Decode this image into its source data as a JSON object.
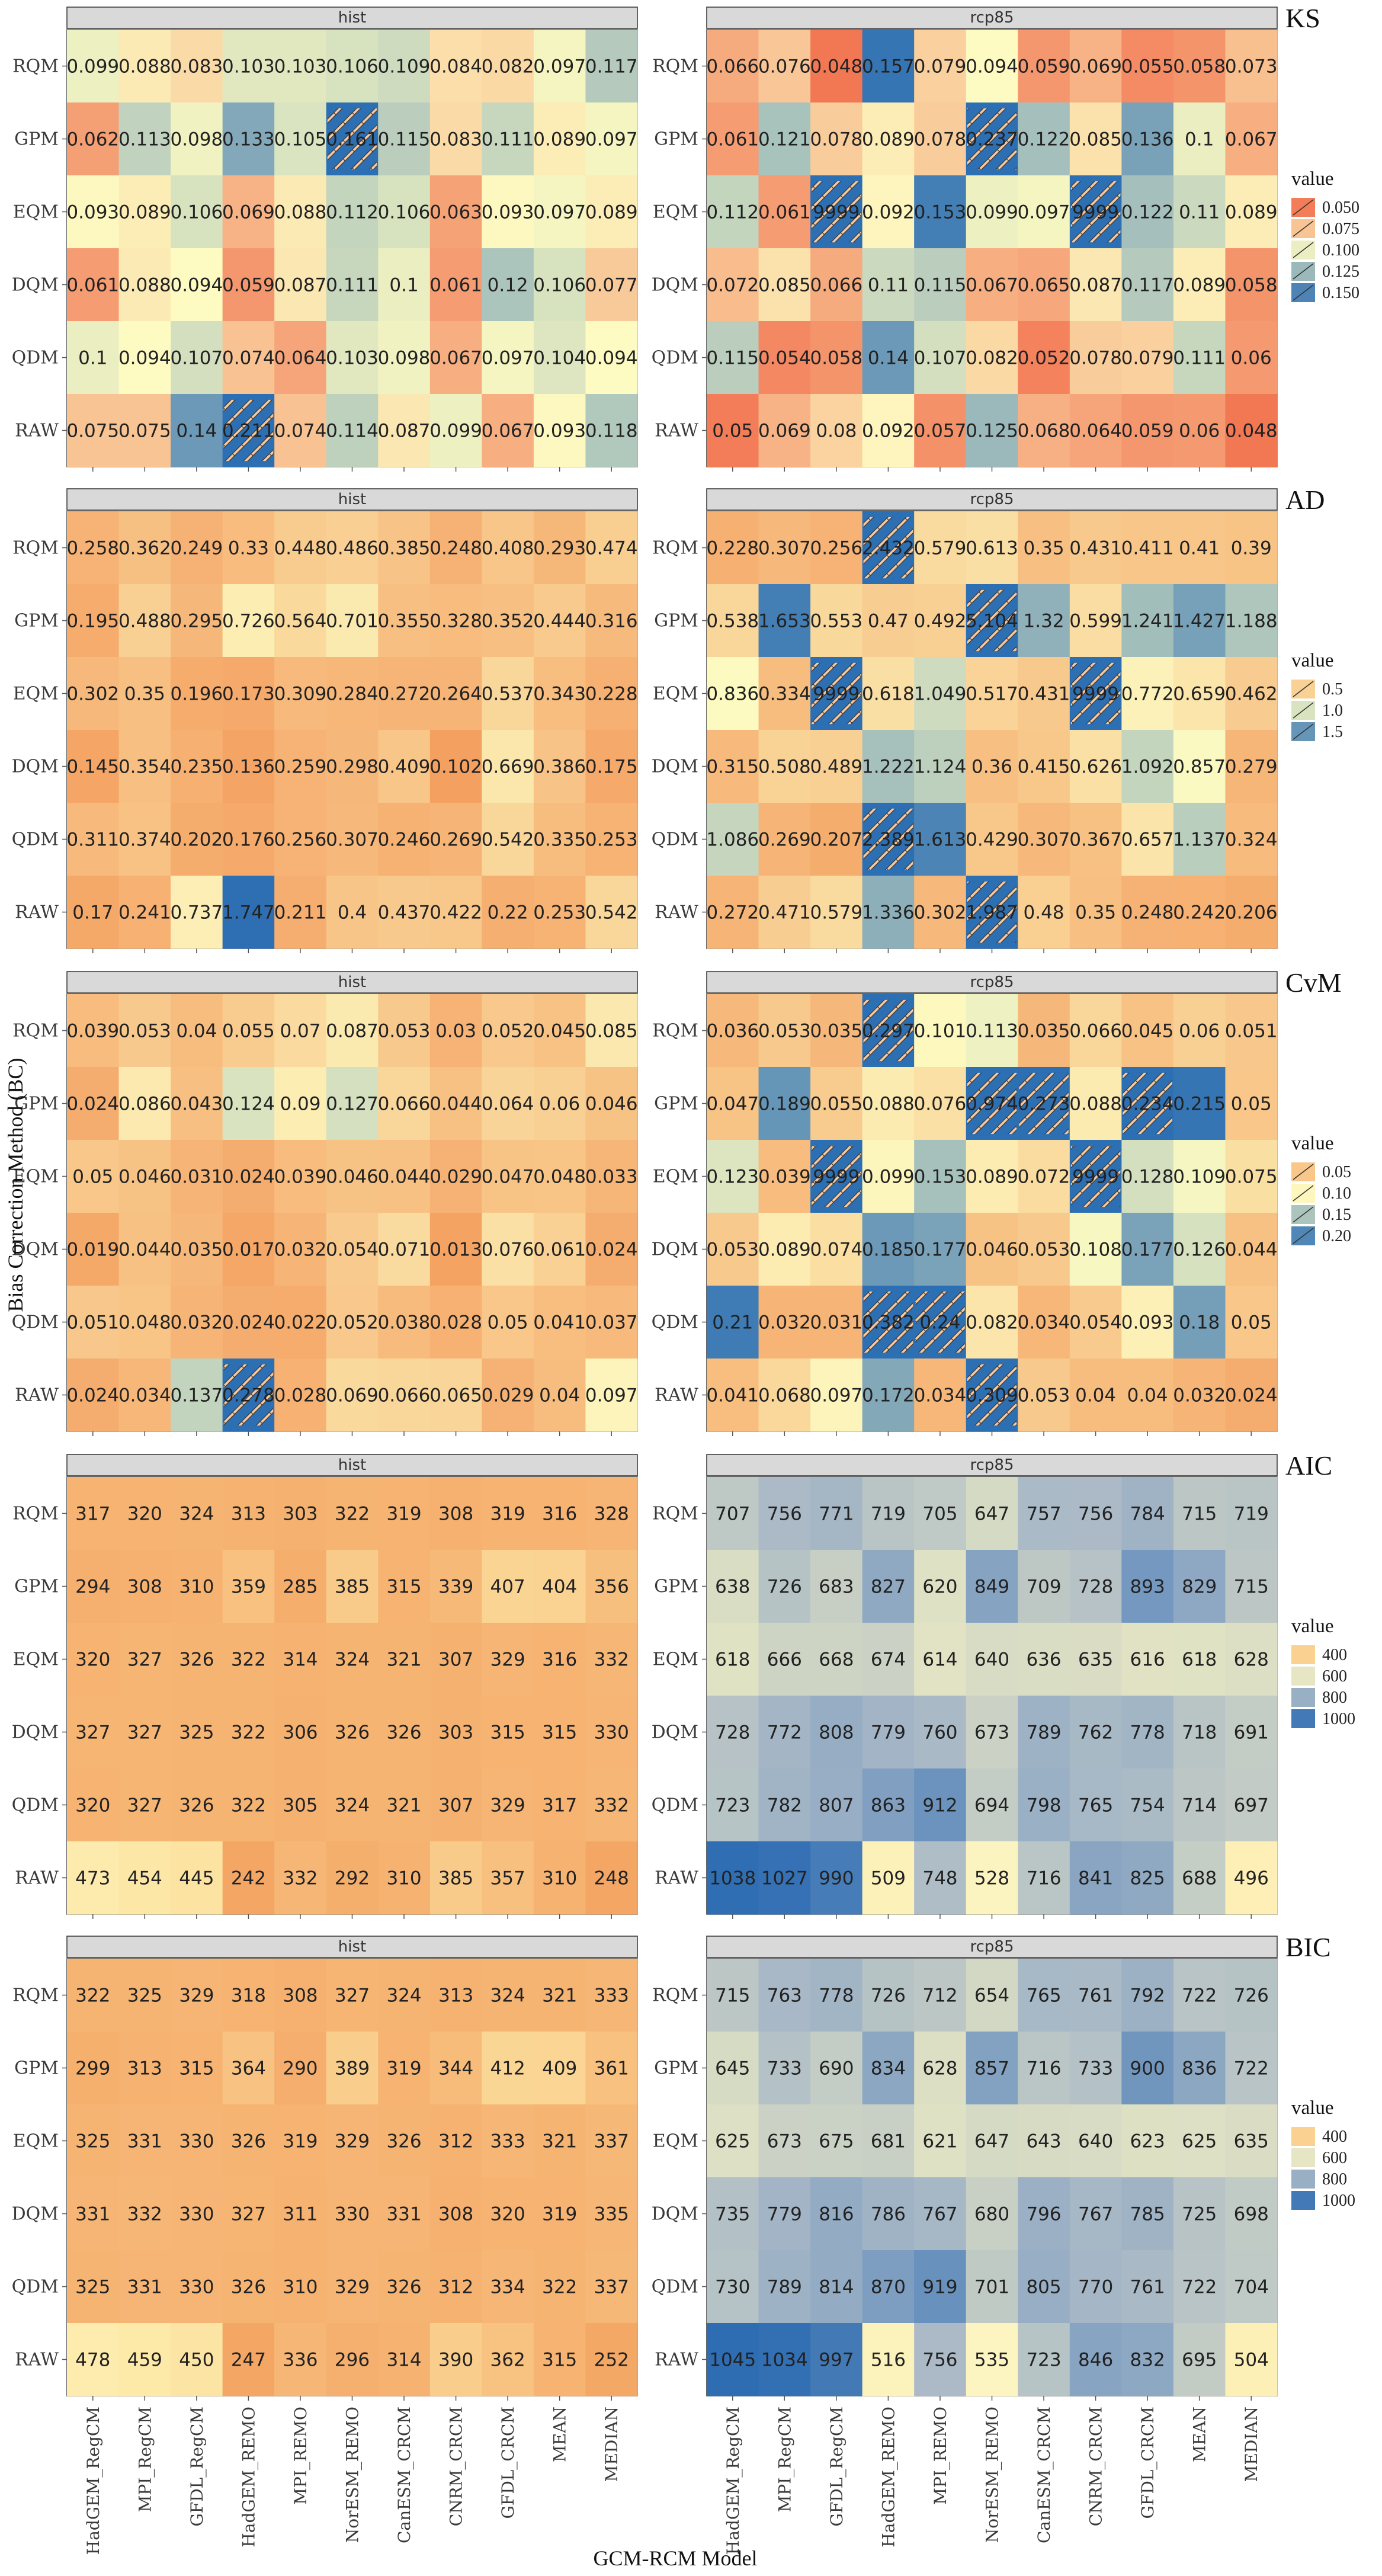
{
  "chart_data": {
    "type": "heatmap",
    "xlabel": "GCM-RCM Model",
    "ylabel": "Bias Correction Method (BC)",
    "models": [
      "HadGEM_RegCM",
      "MPI_RegCM",
      "GFDL_RegCM",
      "HadGEM_REMO",
      "MPI_REMO",
      "NorESM_REMO",
      "CanESM_CRCM",
      "CNRM_CRCM",
      "GFDL_CRCM",
      "MEAN",
      "MEDIAN"
    ],
    "methods": [
      "RQM",
      "GPM",
      "EQM",
      "DQM",
      "QDM",
      "RAW"
    ],
    "scenarios": [
      "hist",
      "rcp85"
    ],
    "legend_title": "value",
    "hatch_note": "hatched cells fall outside the legend range",
    "panels": [
      {
        "metric": "KS",
        "colors": {
          "low": "#f06040",
          "mid": "#fdfbc2",
          "high": "#2d6fb3"
        },
        "range": [
          0.04,
          0.16
        ],
        "legend_ticks": [
          "0.050",
          "0.075",
          "0.100",
          "0.125",
          "0.150"
        ],
        "legend_values": [
          0.05,
          0.075,
          0.1,
          0.125,
          0.15
        ],
        "hist": [
          [
            "0.099",
            "0.088",
            "0.083",
            "0.103",
            "0.103",
            "0.106",
            "0.109",
            "0.084",
            "0.082",
            "0.097",
            "0.117"
          ],
          [
            "0.062",
            "0.113",
            "0.098",
            "0.133",
            "0.105",
            "0.161",
            "0.115",
            "0.083",
            "0.111",
            "0.089",
            "0.097"
          ],
          [
            "0.093",
            "0.089",
            "0.106",
            "0.069",
            "0.088",
            "0.112",
            "0.106",
            "0.063",
            "0.093",
            "0.097",
            "0.089"
          ],
          [
            "0.061",
            "0.088",
            "0.094",
            "0.059",
            "0.087",
            "0.111",
            "0.1",
            "0.061",
            "0.12",
            "0.106",
            "0.077"
          ],
          [
            "0.1",
            "0.094",
            "0.107",
            "0.074",
            "0.064",
            "0.103",
            "0.098",
            "0.067",
            "0.097",
            "0.104",
            "0.094"
          ],
          [
            "0.075",
            "0.075",
            "0.14",
            "0.211",
            "0.074",
            "0.114",
            "0.087",
            "0.099",
            "0.067",
            "0.093",
            "0.118"
          ]
        ],
        "rcp85": [
          [
            "0.066",
            "0.076",
            "0.048",
            "0.157",
            "0.079",
            "0.094",
            "0.059",
            "0.069",
            "0.055",
            "0.058",
            "0.073"
          ],
          [
            "0.061",
            "0.121",
            "0.078",
            "0.089",
            "0.078",
            "0.237",
            "0.122",
            "0.085",
            "0.136",
            "0.1",
            "0.067"
          ],
          [
            "0.112",
            "0.061",
            "9999",
            "0.092",
            "0.153",
            "0.099",
            "0.097",
            "9999",
            "0.122",
            "0.11",
            "0.089"
          ],
          [
            "0.072",
            "0.085",
            "0.066",
            "0.11",
            "0.115",
            "0.067",
            "0.065",
            "0.087",
            "0.117",
            "0.089",
            "0.058"
          ],
          [
            "0.115",
            "0.054",
            "0.058",
            "0.14",
            "0.107",
            "0.082",
            "0.052",
            "0.078",
            "0.079",
            "0.111",
            "0.06"
          ],
          [
            "0.05",
            "0.069",
            "0.08",
            "0.092",
            "0.057",
            "0.125",
            "0.068",
            "0.064",
            "0.059",
            "0.06",
            "0.048"
          ]
        ]
      },
      {
        "metric": "AD",
        "colors": {
          "low": "#f4a060",
          "mid": "#fdfbc2",
          "high": "#2d6fb3"
        },
        "range": [
          0.1,
          1.75
        ],
        "legend_ticks": [
          "0.5",
          "1.0",
          "1.5"
        ],
        "legend_values": [
          0.5,
          1.0,
          1.5
        ],
        "hist": [
          [
            "0.258",
            "0.362",
            "0.249",
            "0.33",
            "0.448",
            "0.486",
            "0.385",
            "0.248",
            "0.408",
            "0.293",
            "0.474"
          ],
          [
            "0.195",
            "0.488",
            "0.295",
            "0.726",
            "0.564",
            "0.701",
            "0.355",
            "0.328",
            "0.352",
            "0.444",
            "0.316"
          ],
          [
            "0.302",
            "0.35",
            "0.196",
            "0.173",
            "0.309",
            "0.284",
            "0.272",
            "0.264",
            "0.537",
            "0.343",
            "0.228"
          ],
          [
            "0.145",
            "0.354",
            "0.235",
            "0.136",
            "0.259",
            "0.298",
            "0.409",
            "0.102",
            "0.669",
            "0.386",
            "0.175"
          ],
          [
            "0.311",
            "0.374",
            "0.202",
            "0.176",
            "0.256",
            "0.307",
            "0.246",
            "0.269",
            "0.542",
            "0.335",
            "0.253"
          ],
          [
            "0.17",
            "0.241",
            "0.737",
            "1.747",
            "0.211",
            "0.4",
            "0.437",
            "0.422",
            "0.22",
            "0.253",
            "0.542"
          ]
        ],
        "rcp85": [
          [
            "0.228",
            "0.307",
            "0.256",
            "2.432",
            "0.579",
            "0.613",
            "0.35",
            "0.431",
            "0.411",
            "0.41",
            "0.39"
          ],
          [
            "0.538",
            "1.653",
            "0.553",
            "0.47",
            "0.492",
            "5.104",
            "1.32",
            "0.599",
            "1.241",
            "1.427",
            "1.188"
          ],
          [
            "0.836",
            "0.334",
            "9999",
            "0.618",
            "1.049",
            "0.517",
            "0.431",
            "9999",
            "0.772",
            "0.659",
            "0.462"
          ],
          [
            "0.315",
            "0.508",
            "0.489",
            "1.222",
            "1.124",
            "0.36",
            "0.415",
            "0.626",
            "1.092",
            "0.857",
            "0.279"
          ],
          [
            "1.086",
            "0.269",
            "0.207",
            "2.389",
            "1.613",
            "0.429",
            "0.307",
            "0.367",
            "0.657",
            "1.137",
            "0.324"
          ],
          [
            "0.272",
            "0.471",
            "0.579",
            "1.336",
            "0.302",
            "1.987",
            "0.48",
            "0.35",
            "0.248",
            "0.242",
            "0.206"
          ]
        ]
      },
      {
        "metric": "CvM",
        "colors": {
          "low": "#f4a060",
          "mid": "#fdfbc2",
          "high": "#2d6fb3"
        },
        "range": [
          0.01,
          0.22
        ],
        "legend_ticks": [
          "0.05",
          "0.10",
          "0.15",
          "0.20"
        ],
        "legend_values": [
          0.05,
          0.1,
          0.15,
          0.2
        ],
        "hist": [
          [
            "0.039",
            "0.053",
            "0.04",
            "0.055",
            "0.07",
            "0.087",
            "0.053",
            "0.03",
            "0.052",
            "0.045",
            "0.085"
          ],
          [
            "0.024",
            "0.086",
            "0.043",
            "0.124",
            "0.09",
            "0.127",
            "0.066",
            "0.044",
            "0.064",
            "0.06",
            "0.046"
          ],
          [
            "0.05",
            "0.046",
            "0.031",
            "0.024",
            "0.039",
            "0.046",
            "0.044",
            "0.029",
            "0.047",
            "0.048",
            "0.033"
          ],
          [
            "0.019",
            "0.044",
            "0.035",
            "0.017",
            "0.032",
            "0.054",
            "0.071",
            "0.013",
            "0.076",
            "0.061",
            "0.024"
          ],
          [
            "0.051",
            "0.048",
            "0.032",
            "0.024",
            "0.022",
            "0.052",
            "0.038",
            "0.028",
            "0.05",
            "0.041",
            "0.037"
          ],
          [
            "0.024",
            "0.034",
            "0.137",
            "0.278",
            "0.028",
            "0.069",
            "0.066",
            "0.065",
            "0.029",
            "0.04",
            "0.097"
          ]
        ],
        "rcp85": [
          [
            "0.036",
            "0.053",
            "0.035",
            "0.297",
            "0.101",
            "0.113",
            "0.035",
            "0.066",
            "0.045",
            "0.06",
            "0.051"
          ],
          [
            "0.047",
            "0.189",
            "0.055",
            "0.088",
            "0.076",
            "0.974",
            "0.273",
            "0.088",
            "0.234",
            "0.215",
            "0.05"
          ],
          [
            "0.123",
            "0.039",
            "9999",
            "0.099",
            "0.153",
            "0.089",
            "0.072",
            "9999",
            "0.128",
            "0.109",
            "0.075"
          ],
          [
            "0.053",
            "0.089",
            "0.074",
            "0.185",
            "0.177",
            "0.046",
            "0.053",
            "0.108",
            "0.177",
            "0.126",
            "0.044"
          ],
          [
            "0.21",
            "0.032",
            "0.031",
            "0.382",
            "0.24",
            "0.082",
            "0.034",
            "0.054",
            "0.093",
            "0.18",
            "0.05"
          ],
          [
            "0.041",
            "0.068",
            "0.097",
            "0.172",
            "0.034",
            "0.309",
            "0.053",
            "0.04",
            "0.04",
            "0.032",
            "0.024"
          ]
        ]
      },
      {
        "metric": "AIC",
        "colors": {
          "low": "#f4a060",
          "mid": "#fdfbc2",
          "high": "#2d6fb3"
        },
        "scale": "aic",
        "range": [
          240,
          1040
        ],
        "legend_ticks": [
          "400",
          "600",
          "800",
          "1000"
        ],
        "legend_values": [
          400,
          600,
          800,
          1000
        ],
        "hist": [
          [
            "317",
            "320",
            "324",
            "313",
            "303",
            "322",
            "319",
            "308",
            "319",
            "316",
            "328"
          ],
          [
            "294",
            "308",
            "310",
            "359",
            "285",
            "385",
            "315",
            "339",
            "407",
            "404",
            "356"
          ],
          [
            "320",
            "327",
            "326",
            "322",
            "314",
            "324",
            "321",
            "307",
            "329",
            "316",
            "332"
          ],
          [
            "327",
            "327",
            "325",
            "322",
            "306",
            "326",
            "326",
            "303",
            "315",
            "315",
            "330"
          ],
          [
            "320",
            "327",
            "326",
            "322",
            "305",
            "324",
            "321",
            "307",
            "329",
            "317",
            "332"
          ],
          [
            "473",
            "454",
            "445",
            "242",
            "332",
            "292",
            "310",
            "385",
            "357",
            "310",
            "248"
          ]
        ],
        "rcp85": [
          [
            "707",
            "756",
            "771",
            "719",
            "705",
            "647",
            "757",
            "756",
            "784",
            "715",
            "719"
          ],
          [
            "638",
            "726",
            "683",
            "827",
            "620",
            "849",
            "709",
            "728",
            "893",
            "829",
            "715"
          ],
          [
            "618",
            "666",
            "668",
            "674",
            "614",
            "640",
            "636",
            "635",
            "616",
            "618",
            "628"
          ],
          [
            "728",
            "772",
            "808",
            "779",
            "760",
            "673",
            "789",
            "762",
            "778",
            "718",
            "691"
          ],
          [
            "723",
            "782",
            "807",
            "863",
            "912",
            "694",
            "798",
            "765",
            "754",
            "714",
            "697"
          ],
          [
            "1038",
            "1027",
            "990",
            "509",
            "748",
            "528",
            "716",
            "841",
            "825",
            "688",
            "496"
          ]
        ]
      },
      {
        "metric": "BIC",
        "colors": {
          "low": "#f4a060",
          "mid": "#fdfbc2",
          "high": "#2d6fb3"
        },
        "scale": "aic",
        "range": [
          240,
          1040
        ],
        "legend_ticks": [
          "400",
          "600",
          "800",
          "1000"
        ],
        "legend_values": [
          400,
          600,
          800,
          1000
        ],
        "hist": [
          [
            "322",
            "325",
            "329",
            "318",
            "308",
            "327",
            "324",
            "313",
            "324",
            "321",
            "333"
          ],
          [
            "299",
            "313",
            "315",
            "364",
            "290",
            "389",
            "319",
            "344",
            "412",
            "409",
            "361"
          ],
          [
            "325",
            "331",
            "330",
            "326",
            "319",
            "329",
            "326",
            "312",
            "333",
            "321",
            "337"
          ],
          [
            "331",
            "332",
            "330",
            "327",
            "311",
            "330",
            "331",
            "308",
            "320",
            "319",
            "335"
          ],
          [
            "325",
            "331",
            "330",
            "326",
            "310",
            "329",
            "326",
            "312",
            "334",
            "322",
            "337"
          ],
          [
            "478",
            "459",
            "450",
            "247",
            "336",
            "296",
            "314",
            "390",
            "362",
            "315",
            "252"
          ]
        ],
        "rcp85": [
          [
            "715",
            "763",
            "778",
            "726",
            "712",
            "654",
            "765",
            "761",
            "792",
            "722",
            "726"
          ],
          [
            "645",
            "733",
            "690",
            "834",
            "628",
            "857",
            "716",
            "733",
            "900",
            "836",
            "722"
          ],
          [
            "625",
            "673",
            "675",
            "681",
            "621",
            "647",
            "643",
            "640",
            "623",
            "625",
            "635"
          ],
          [
            "735",
            "779",
            "816",
            "786",
            "767",
            "680",
            "796",
            "767",
            "785",
            "725",
            "698"
          ],
          [
            "730",
            "789",
            "814",
            "870",
            "919",
            "701",
            "805",
            "770",
            "761",
            "722",
            "704"
          ],
          [
            "1045",
            "1034",
            "997",
            "516",
            "756",
            "535",
            "723",
            "846",
            "832",
            "695",
            "504"
          ]
        ]
      }
    ]
  }
}
